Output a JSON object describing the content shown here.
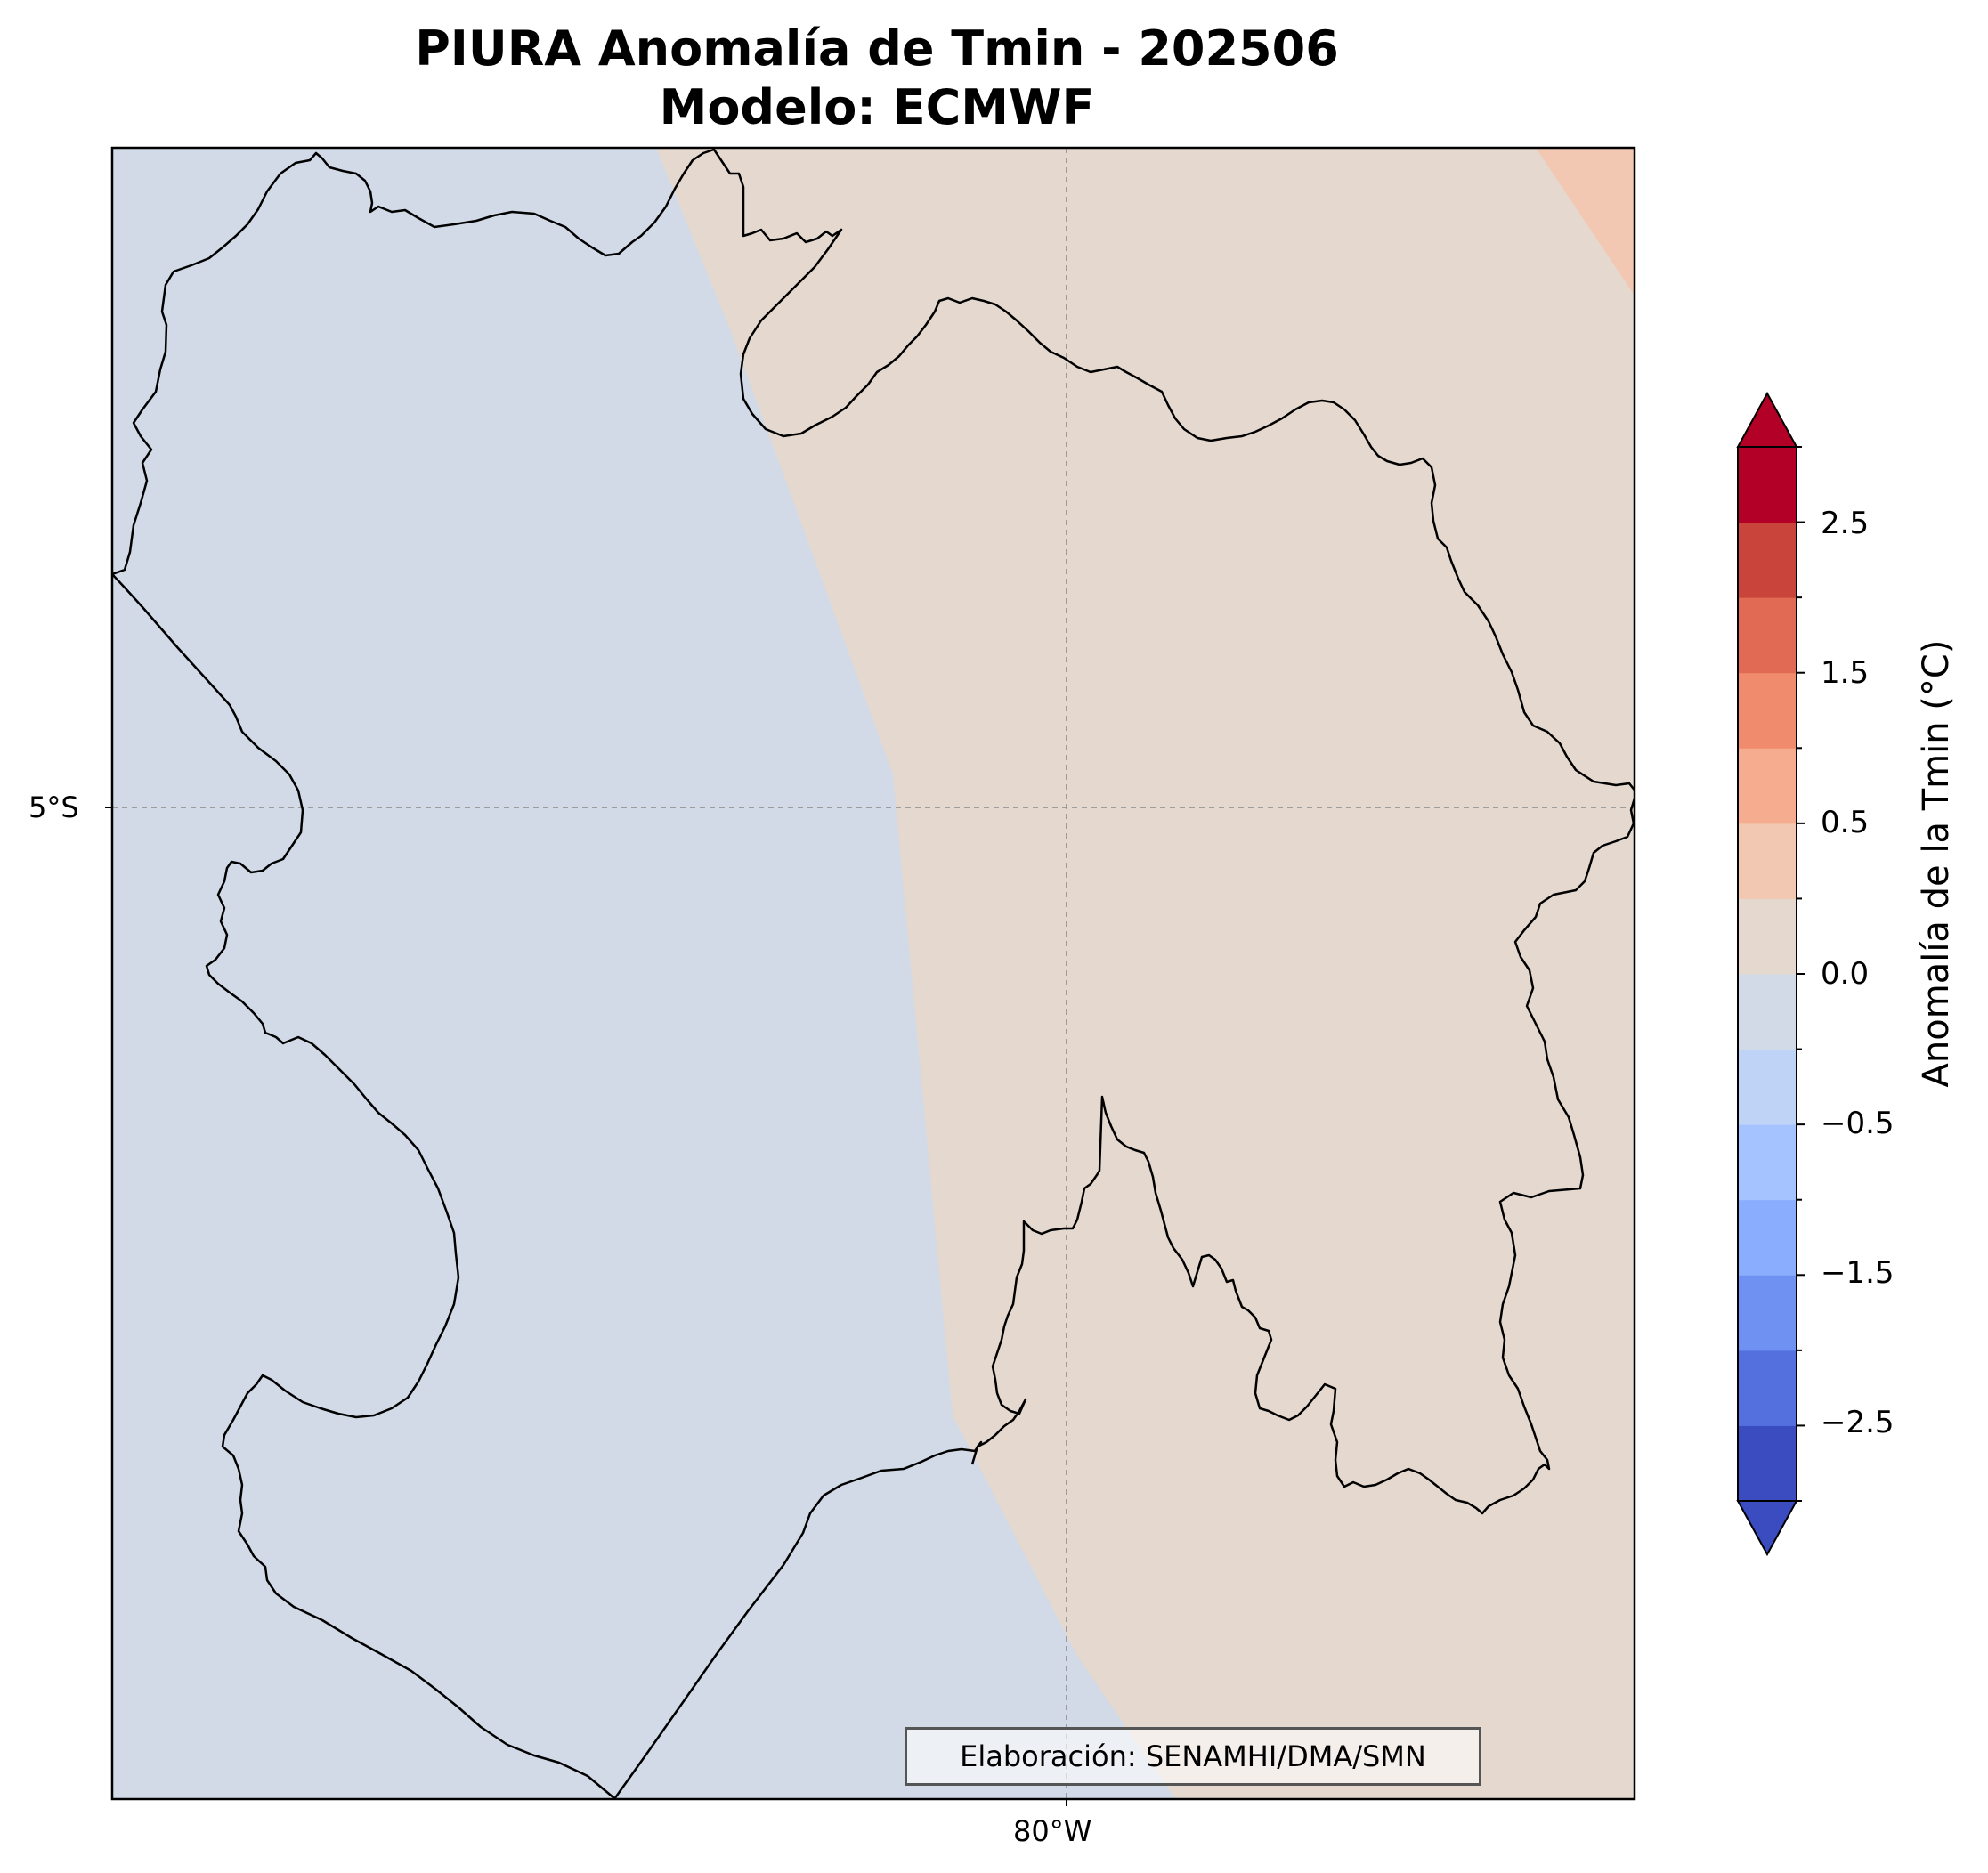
{
  "title_line1": "PIURA Anomalía de Tmin - 202506",
  "title_line2": "Modelo: ECMWF",
  "map": {
    "lat_label": "5°S",
    "lon_label": "80°W",
    "credit": "Elaboración: SENAMHI/DMA/SMN",
    "field_colors": {
      "negative_small": "#d1dae6",
      "positive_small": "#e5d8cf",
      "positive_mid": "#f2c8b2"
    }
  },
  "colorbar": {
    "label": "Anomalía de la Tmin (°C)",
    "range": [
      -3,
      3
    ],
    "step": 0.25,
    "extend": "both",
    "tick_labels": [
      "2.5",
      "1.5",
      "0.5",
      "0.0",
      "−0.5",
      "−1.5",
      "−2.5"
    ],
    "colors": [
      "#3a4cc0",
      "#5470de",
      "#6f92f2",
      "#8badfd",
      "#a5c3fe",
      "#bfd3f6",
      "#d1dae6",
      "#e5d8cf",
      "#f2c8b2",
      "#f5ac8f",
      "#f08b6d",
      "#e06a53",
      "#c9453c",
      "#b20026"
    ],
    "under_color": "#3a4cc0",
    "over_color": "#b20026"
  }
}
